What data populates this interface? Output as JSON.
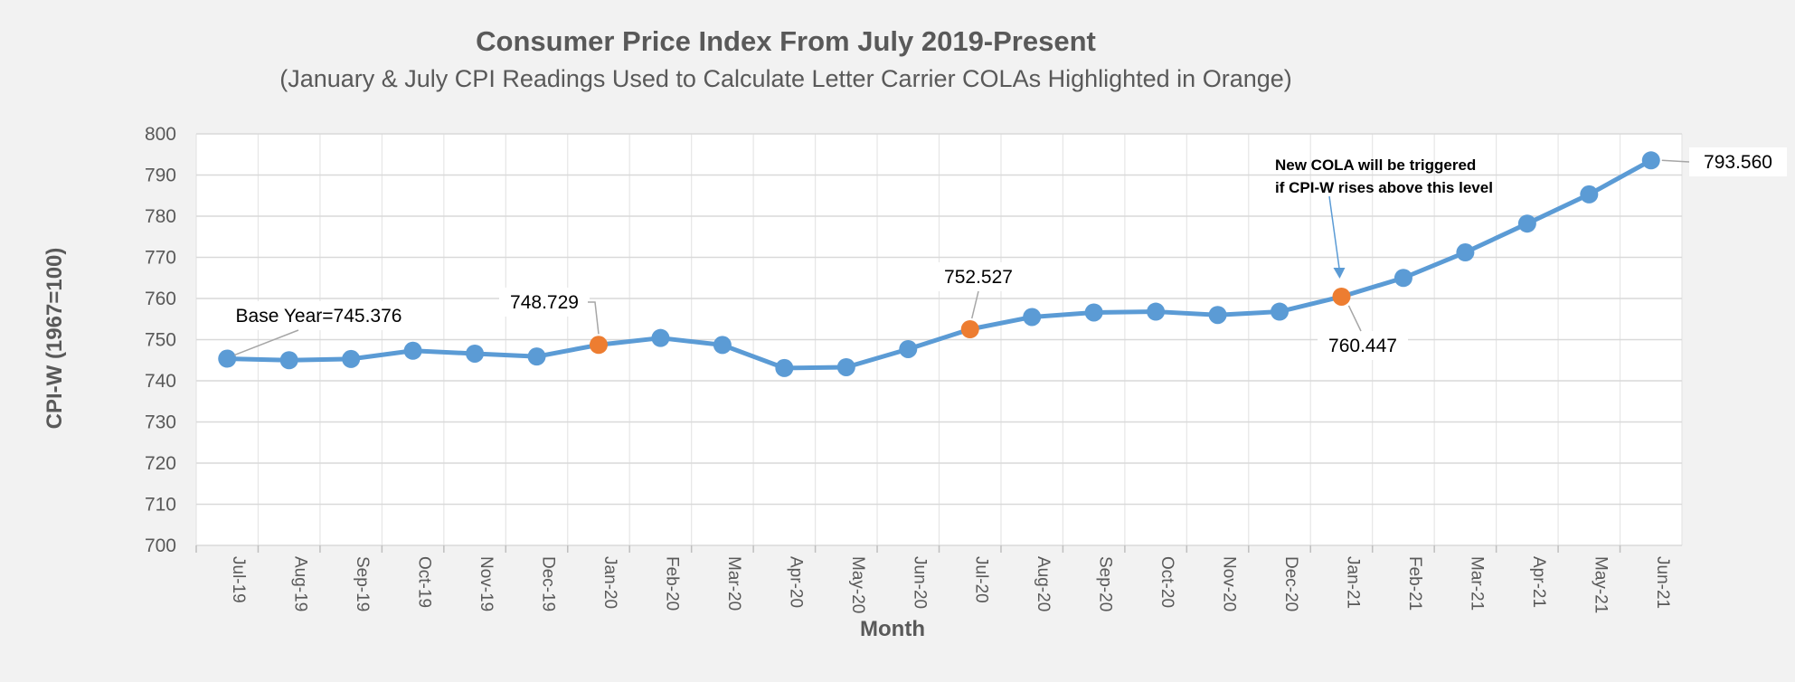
{
  "chart_data": {
    "type": "line",
    "title": "Consumer Price Index From July 2019-Present",
    "subtitle": "(January & July CPI Readings Used to Calculate Letter Carrier COLAs Highlighted in Orange)",
    "xlabel": "Month",
    "ylabel": "CPI-W (1967=100)",
    "ylim": [
      700,
      800
    ],
    "yticks": [
      700,
      710,
      720,
      730,
      740,
      750,
      760,
      770,
      780,
      790,
      800
    ],
    "grid": true,
    "categories": [
      "Jul-19",
      "Aug-19",
      "Sep-19",
      "Oct-19",
      "Nov-19",
      "Dec-19",
      "Jan-20",
      "Feb-20",
      "Mar-20",
      "Apr-20",
      "May-20",
      "Jun-20",
      "Jul-20",
      "Aug-20",
      "Sep-20",
      "Oct-20",
      "Nov-20",
      "Dec-20",
      "Jan-21",
      "Feb-21",
      "Mar-21",
      "Apr-21",
      "May-21",
      "Jun-21"
    ],
    "series": [
      {
        "values": [
          745.376,
          745.0,
          745.3,
          747.3,
          746.6,
          745.9,
          748.729,
          750.4,
          748.7,
          743.1,
          743.3,
          747.7,
          752.527,
          755.5,
          756.6,
          756.8,
          756.0,
          756.8,
          760.447,
          765.0,
          771.2,
          778.2,
          785.3,
          793.56
        ]
      }
    ],
    "highlighted_categories": [
      "Jan-20",
      "Jul-20",
      "Jan-21"
    ],
    "colors": {
      "line": "#5b9bd5",
      "marker": "#5b9bd5",
      "highlight": "#ed7d31"
    },
    "data_labels": [
      {
        "category": "Jul-19",
        "text": "Base Year=745.376"
      },
      {
        "category": "Jan-20",
        "text": "748.729"
      },
      {
        "category": "Jul-20",
        "text": "752.527"
      },
      {
        "category": "Jan-21",
        "text": "760.447"
      },
      {
        "category": "Jun-21",
        "text": "793.560"
      }
    ],
    "annotation": {
      "category": "Jan-21",
      "lines": [
        "New COLA will be triggered",
        "if CPI-W rises above this level"
      ]
    }
  }
}
